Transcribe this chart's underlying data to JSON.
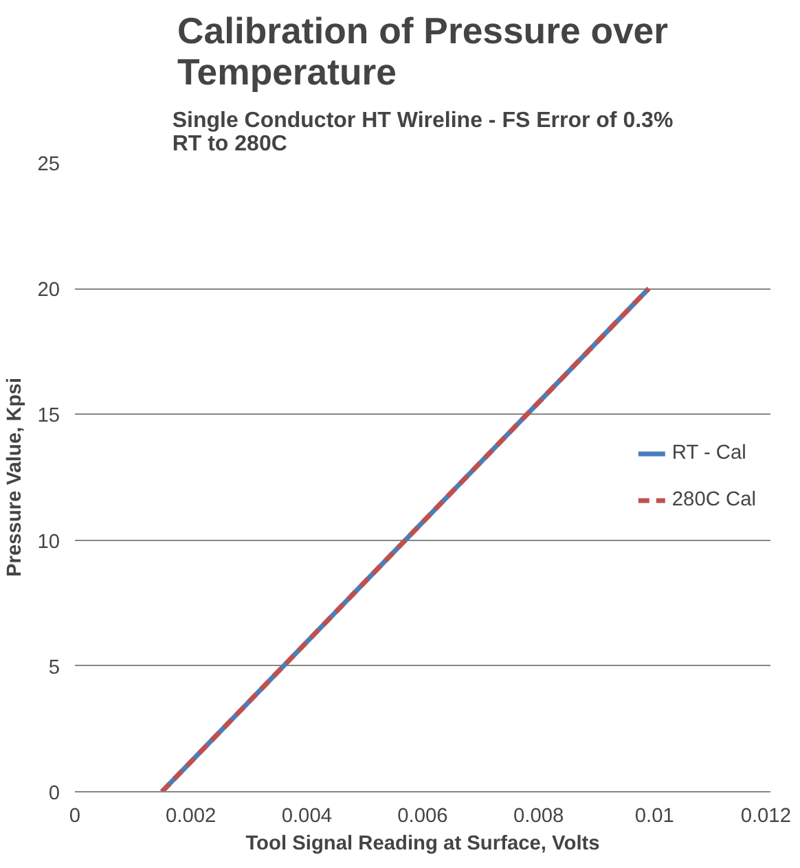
{
  "chart_data": {
    "type": "line",
    "title": "Calibration of Pressure over Temperature",
    "subtitle": "Single Conductor HT Wireline - FS Error of 0.3%\nRT to 280C",
    "xlabel": "Tool Signal Reading at Surface, Volts",
    "ylabel": "Pressure Value, Kpsi",
    "x": [
      0.0015,
      0.0099
    ],
    "series": [
      {
        "name": "RT - Cal",
        "color": "#4a7ebb",
        "line_style": "solid",
        "values": [
          0,
          20
        ]
      },
      {
        "name": "280C Cal",
        "color": "#c0504d",
        "line_style": "dashed",
        "values": [
          0,
          20
        ]
      }
    ],
    "xlim": [
      0,
      0.012
    ],
    "ylim": [
      0,
      25
    ],
    "xticks": [
      0,
      0.002,
      0.004,
      0.006,
      0.008,
      0.01,
      0.012
    ],
    "yticks": [
      0,
      5,
      10,
      15,
      20,
      25
    ],
    "grid": "y",
    "legend": "right"
  }
}
